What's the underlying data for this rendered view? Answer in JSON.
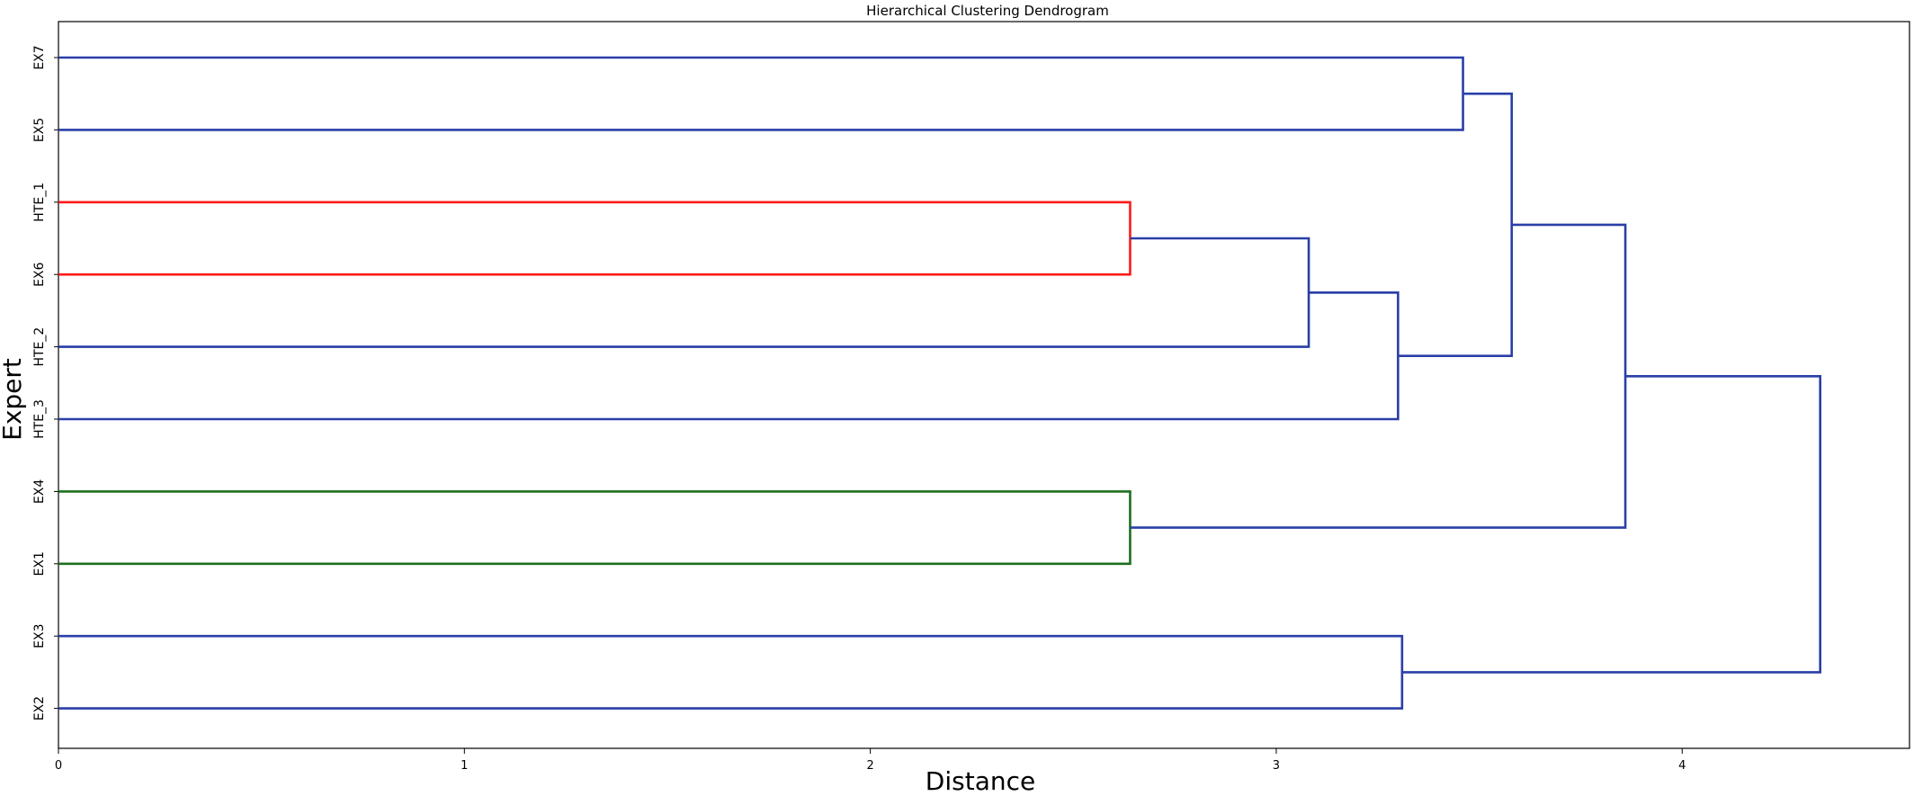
{
  "chart_data": {
    "type": "dendrogram",
    "title": "Hierarchical Clustering Dendrogram",
    "xlabel": "Distance",
    "ylabel": "Expert",
    "orientation": "left",
    "xlim": [
      0,
      4.56
    ],
    "xticks": [
      0,
      1,
      2,
      3,
      4
    ],
    "leaves": [
      "EX7",
      "EX5",
      "HTE_1",
      "EX6",
      "HTE_2",
      "HTE_3",
      "EX4",
      "EX1",
      "EX3",
      "EX2"
    ],
    "colors": {
      "red": "#ff1a1a",
      "green": "#1e6e1e",
      "blue": "#2a3fa8"
    },
    "merges": [
      {
        "a": "EX7",
        "b": "EX5",
        "height": 3.46,
        "color": "blue"
      },
      {
        "a": "HTE_1",
        "b": "EX6",
        "height": 2.64,
        "color": "red"
      },
      {
        "a": "EX4",
        "b": "EX1",
        "height": 2.64,
        "color": "green"
      },
      {
        "a": "m2",
        "b": "HTE_2",
        "height": 3.08,
        "color": "blue"
      },
      {
        "a": "m4",
        "b": "HTE_3",
        "height": 3.3,
        "color": "blue"
      },
      {
        "a": "EX3",
        "b": "EX2",
        "height": 3.31,
        "color": "blue"
      },
      {
        "a": "m1",
        "b": "m5",
        "height": 3.58,
        "color": "blue"
      },
      {
        "a": "m7",
        "b": "m3",
        "height": 3.86,
        "color": "blue"
      },
      {
        "a": "m8",
        "b": "m6",
        "height": 4.34,
        "color": "blue"
      }
    ]
  }
}
